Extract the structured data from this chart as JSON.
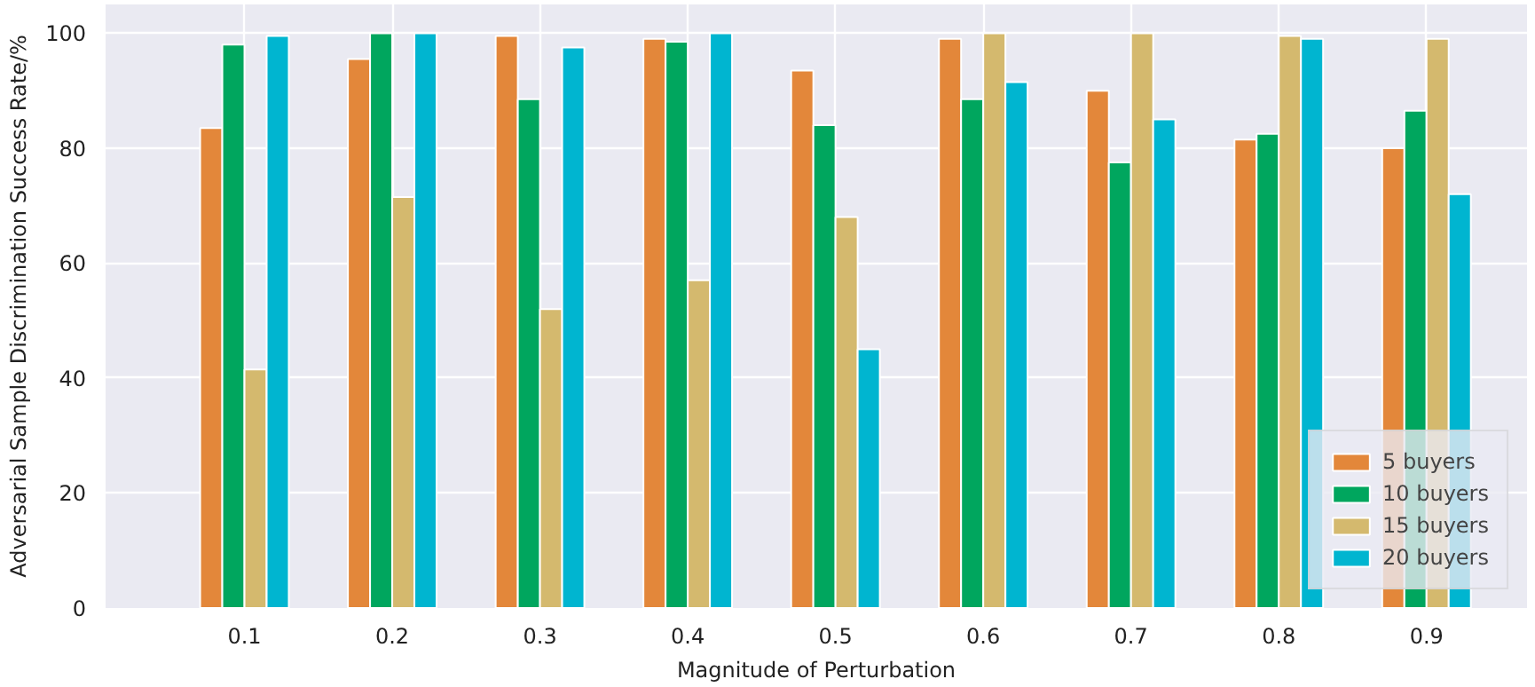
{
  "chart_data": {
    "type": "bar",
    "xlabel": "Magnitude of Perturbation",
    "ylabel": "Adversarial Sample Discrimination Success Rate/%",
    "categories": [
      "0.1",
      "0.2",
      "0.3",
      "0.4",
      "0.5",
      "0.6",
      "0.7",
      "0.8",
      "0.9"
    ],
    "series": [
      {
        "name": "5 buyers",
        "color": "#e3873a",
        "values": [
          83.5,
          95.5,
          99.5,
          99,
          93.5,
          99,
          90,
          81.5,
          80
        ]
      },
      {
        "name": "10 buyers",
        "color": "#00a65e",
        "values": [
          98,
          100,
          88.5,
          98.5,
          84,
          88.5,
          77.5,
          82.5,
          86.5
        ]
      },
      {
        "name": "15 buyers",
        "color": "#d4b96e",
        "values": [
          41.5,
          71.5,
          52,
          57,
          68,
          100,
          100,
          99.5,
          99
        ]
      },
      {
        "name": "20 buyers",
        "color": "#00b5d0",
        "values": [
          99.5,
          100,
          97.5,
          100,
          45,
          91.5,
          85,
          99,
          72
        ]
      }
    ],
    "ylim": [
      0,
      105
    ],
    "yticks": [
      0,
      20,
      40,
      60,
      80,
      100
    ],
    "grid": true,
    "legend": "bottom right"
  }
}
